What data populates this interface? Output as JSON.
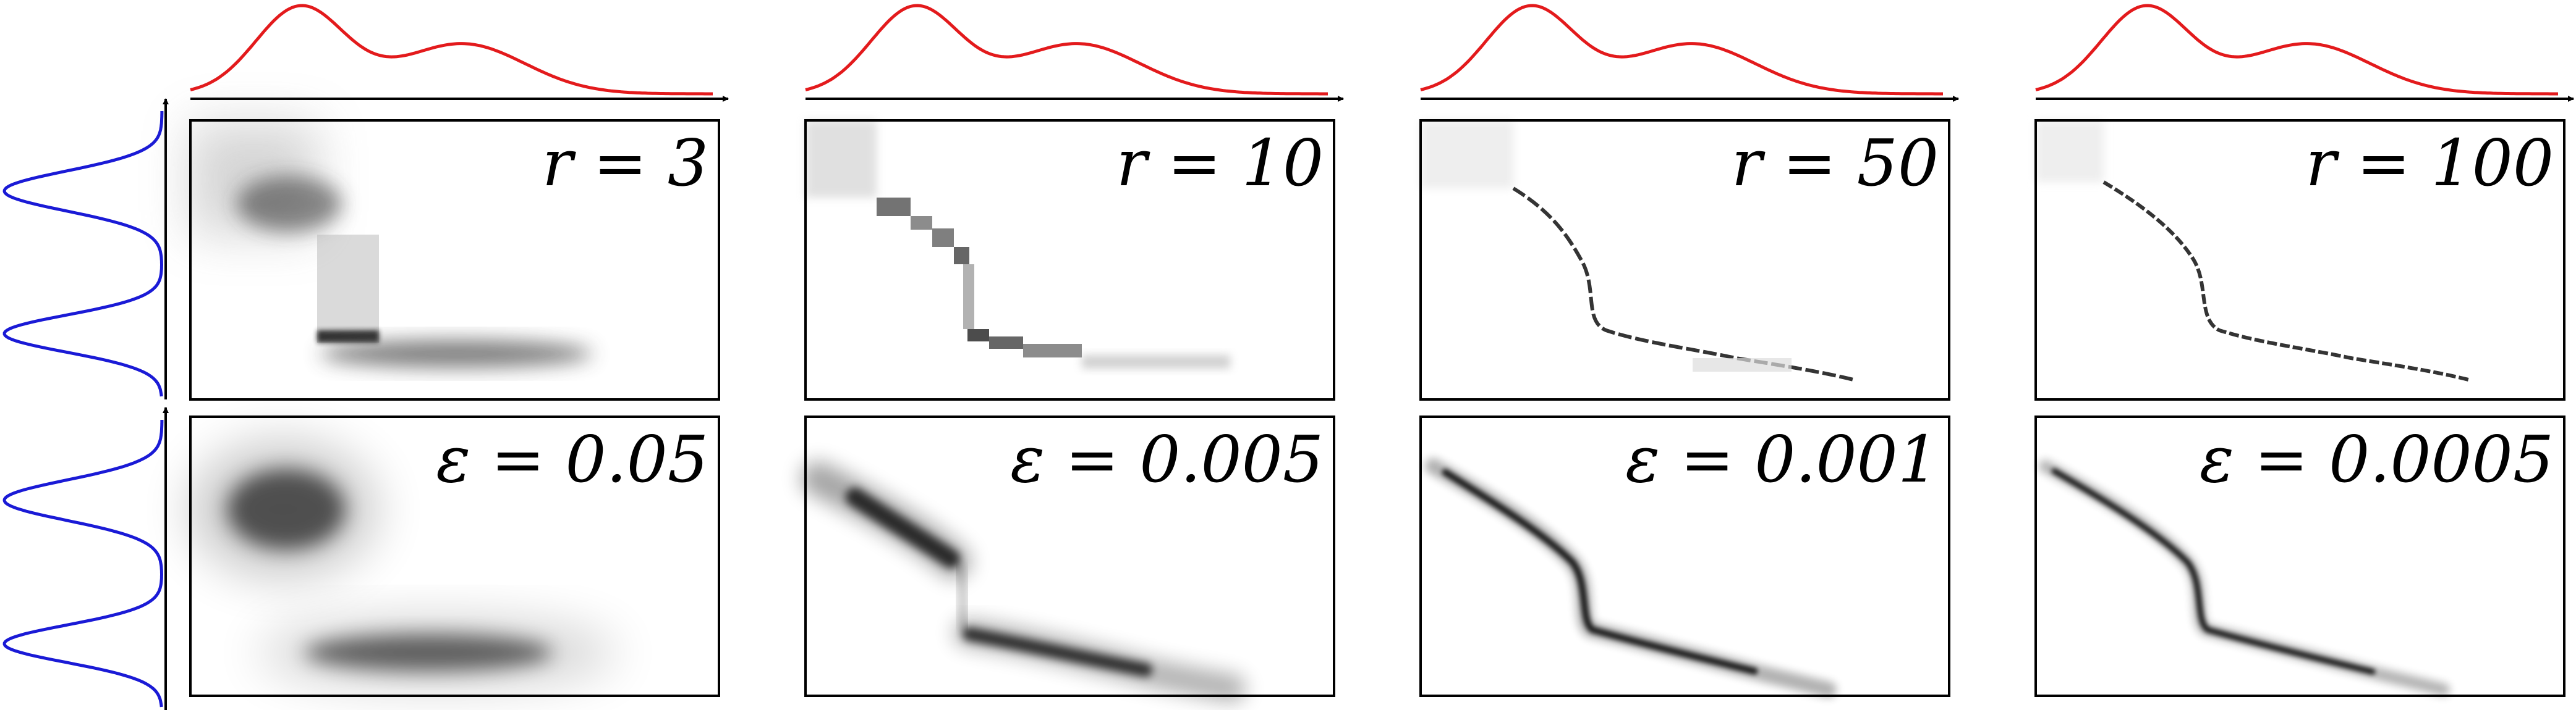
{
  "colors": {
    "source_marginal": "#e31a1c",
    "target_marginal": "#1a1ad6",
    "axis": "#000000",
    "panel_border": "#000000",
    "ink": "#000000",
    "background": "#ffffff"
  },
  "top_row": {
    "panels": [
      {
        "label": "r = 3",
        "r": 3
      },
      {
        "label": "r = 10",
        "r": 10
      },
      {
        "label": "r = 50",
        "r": 50
      },
      {
        "label": "r = 100",
        "r": 100
      }
    ]
  },
  "bottom_row": {
    "panels": [
      {
        "label": "ε = 0.05",
        "epsilon": 0.05
      },
      {
        "label": "ε = 0.005",
        "epsilon": 0.005
      },
      {
        "label": "ε = 0.001",
        "epsilon": 0.001
      },
      {
        "label": "ε = 0.0005",
        "epsilon": 0.0005
      }
    ]
  },
  "marginals": {
    "source": "red density curve (two bumps: large left, smaller right)",
    "target": "blue density curve (two peaks)"
  }
}
